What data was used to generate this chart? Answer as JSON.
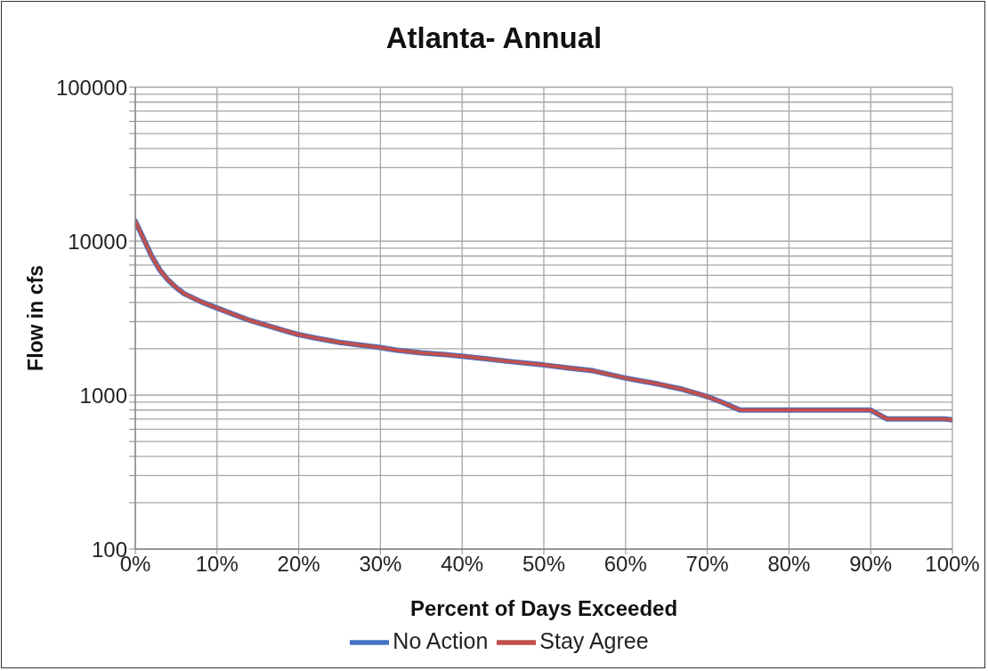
{
  "chart_data": {
    "type": "line",
    "title": "Atlanta- Annual",
    "xlabel": "Percent of Days Exceeded",
    "ylabel": "Flow in cfs",
    "x": [
      0,
      1,
      2,
      3,
      4,
      5,
      6,
      8,
      10,
      12,
      14,
      16,
      18,
      20,
      22,
      25,
      28,
      30,
      32,
      35,
      38,
      40,
      43,
      46,
      50,
      53,
      56,
      60,
      64,
      67,
      70,
      72,
      74,
      80,
      90,
      92,
      95,
      99,
      100
    ],
    "series": [
      {
        "name": "No Action",
        "color": "#4472c4",
        "values": [
          13500,
          10400,
          8000,
          6500,
          5600,
          5000,
          4550,
          4050,
          3680,
          3350,
          3060,
          2850,
          2650,
          2470,
          2350,
          2200,
          2100,
          2040,
          1960,
          1880,
          1830,
          1790,
          1720,
          1650,
          1570,
          1500,
          1440,
          1290,
          1180,
          1090,
          980,
          890,
          800,
          800,
          800,
          700,
          700,
          700,
          690
        ]
      },
      {
        "name": "Stay Agree",
        "color": "#c0504d",
        "values": [
          13500,
          10400,
          8000,
          6500,
          5600,
          5000,
          4550,
          4050,
          3680,
          3350,
          3060,
          2850,
          2650,
          2470,
          2350,
          2200,
          2100,
          2040,
          1960,
          1880,
          1830,
          1790,
          1720,
          1650,
          1570,
          1500,
          1440,
          1290,
          1180,
          1090,
          980,
          890,
          800,
          800,
          800,
          700,
          700,
          700,
          690
        ]
      }
    ],
    "xlim": [
      0,
      100
    ],
    "xticks": [
      {
        "value": 0,
        "label": "0%"
      },
      {
        "value": 10,
        "label": "10%"
      },
      {
        "value": 20,
        "label": "20%"
      },
      {
        "value": 30,
        "label": "30%"
      },
      {
        "value": 40,
        "label": "40%"
      },
      {
        "value": 50,
        "label": "50%"
      },
      {
        "value": 60,
        "label": "60%"
      },
      {
        "value": 70,
        "label": "70%"
      },
      {
        "value": 80,
        "label": "80%"
      },
      {
        "value": 90,
        "label": "90%"
      },
      {
        "value": 100,
        "label": "100%"
      }
    ],
    "ylim": [
      100,
      100000
    ],
    "yticks": [
      100,
      {
        "value": 200,
        "label": null
      },
      {
        "value": 300,
        "label": null
      },
      {
        "value": 400,
        "label": null
      },
      {
        "value": 500,
        "label": null
      },
      {
        "value": 600,
        "label": null
      },
      {
        "value": 700,
        "label": null
      },
      {
        "value": 800,
        "label": null
      },
      {
        "value": 900,
        "label": null
      },
      1000,
      {
        "value": 2000,
        "label": null
      },
      {
        "value": 3000,
        "label": null
      },
      {
        "value": 4000,
        "label": null
      },
      {
        "value": 5000,
        "label": null
      },
      {
        "value": 6000,
        "label": null
      },
      {
        "value": 7000,
        "label": null
      },
      {
        "value": 8000,
        "label": null
      },
      {
        "value": 9000,
        "label": null
      },
      10000,
      {
        "value": 20000,
        "label": null
      },
      {
        "value": 30000,
        "label": null
      },
      {
        "value": 40000,
        "label": null
      },
      {
        "value": 50000,
        "label": null
      },
      {
        "value": 60000,
        "label": null
      },
      {
        "value": 70000,
        "label": null
      },
      {
        "value": 80000,
        "label": null
      },
      {
        "value": 90000,
        "label": null
      },
      100000
    ],
    "log": "y",
    "grid": true,
    "legend": "bottom",
    "marker": "none",
    "line_style": "solid"
  }
}
